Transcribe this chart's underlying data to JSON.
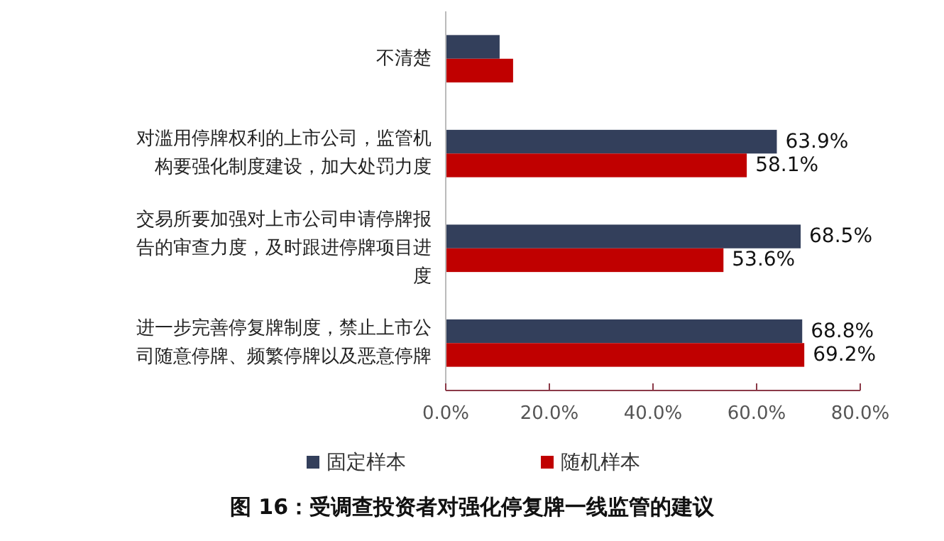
{
  "chart_data": {
    "type": "bar",
    "orientation": "horizontal",
    "title": "图 16：受调查投资者对强化停复牌一线监管的建议",
    "categories": [
      "不清楚",
      "对滥用停牌权利的上市公司，监管机构要强化制度建设，加大处罚力度",
      "交易所要加强对上市公司申请停牌报告的审查力度，及时跟进停牌项目进度",
      "进一步完善停复牌制度，禁止上市公司随意停牌、频繁停牌以及恶意停牌"
    ],
    "series": [
      {
        "name": "固定样本",
        "color": "#333f5b",
        "values": [
          10.4,
          63.9,
          68.5,
          68.8
        ],
        "value_labels": [
          null,
          "63.9%",
          "68.5%",
          "68.8%"
        ]
      },
      {
        "name": "随机样本",
        "color": "#c00000",
        "values": [
          13.0,
          58.1,
          53.6,
          69.2
        ],
        "value_labels": [
          null,
          "58.1%",
          "53.6%",
          "69.2%"
        ]
      }
    ],
    "xlim": [
      0,
      80
    ],
    "xticks": [
      {
        "value": 0,
        "label": "0.0%"
      },
      {
        "value": 20,
        "label": "20.0%"
      },
      {
        "value": 40,
        "label": "40.0%"
      },
      {
        "value": 60,
        "label": "60.0%"
      },
      {
        "value": 80,
        "label": "80.0%"
      }
    ],
    "grid": false,
    "legend": "bottom"
  }
}
